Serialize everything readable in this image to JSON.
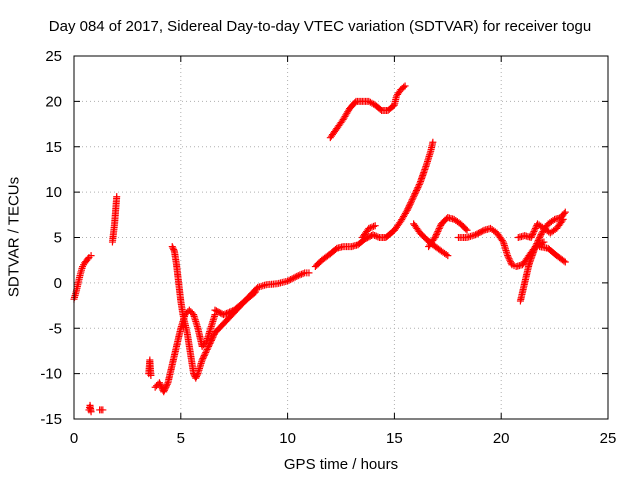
{
  "chart_data": {
    "type": "scatter",
    "title": "Day 084 of 2017, Sidereal Day-to-day VTEC variation (SDTVAR) for receiver togu",
    "xlabel": "GPS time / hours",
    "ylabel": "SDTVAR / TECUs",
    "xlim": [
      0,
      25
    ],
    "ylim": [
      -15,
      25
    ],
    "xticks": [
      0,
      5,
      10,
      15,
      20,
      25
    ],
    "yticks": [
      -15,
      -10,
      -5,
      0,
      5,
      10,
      15,
      20,
      25
    ],
    "grid": true,
    "marker": "plus",
    "color": "#ff0000",
    "segments": [
      [
        [
          0.0,
          -1.8
        ],
        [
          0.1,
          -1.0
        ],
        [
          0.2,
          0.0
        ],
        [
          0.3,
          1.0
        ],
        [
          0.4,
          1.8
        ],
        [
          0.5,
          2.2
        ],
        [
          0.6,
          2.5
        ],
        [
          0.7,
          2.8
        ],
        [
          0.8,
          3.0
        ]
      ],
      [
        [
          0.7,
          -14.0
        ],
        [
          0.75,
          -13.5
        ],
        [
          0.8,
          -14.2
        ]
      ],
      [
        [
          1.2,
          -14.0
        ],
        [
          1.35,
          -14.0
        ]
      ],
      [
        [
          1.8,
          4.5
        ],
        [
          1.85,
          5.5
        ],
        [
          1.9,
          6.5
        ],
        [
          1.95,
          8.0
        ],
        [
          2.0,
          9.5
        ]
      ],
      [
        [
          3.5,
          -10.0
        ],
        [
          3.55,
          -8.5
        ],
        [
          3.6,
          -10.2
        ]
      ],
      [
        [
          3.8,
          -11.5
        ],
        [
          4.0,
          -11.0
        ],
        [
          4.2,
          -12.0
        ],
        [
          4.4,
          -11.0
        ],
        [
          4.6,
          -9.0
        ],
        [
          4.8,
          -7.0
        ],
        [
          5.0,
          -5.0
        ],
        [
          5.2,
          -3.5
        ],
        [
          5.4,
          -3.0
        ],
        [
          5.6,
          -3.5
        ],
        [
          5.8,
          -5.0
        ],
        [
          6.0,
          -7.0
        ],
        [
          6.2,
          -6.5
        ],
        [
          6.4,
          -5.0
        ],
        [
          6.6,
          -3.5
        ]
      ],
      [
        [
          4.6,
          4.0
        ],
        [
          4.7,
          3.5
        ],
        [
          4.8,
          2.0
        ],
        [
          4.9,
          0.0
        ],
        [
          5.0,
          -2.0
        ],
        [
          5.1,
          -3.5
        ],
        [
          5.2,
          -4.5
        ],
        [
          5.3,
          -5.5
        ],
        [
          5.4,
          -7.0
        ],
        [
          5.5,
          -8.5
        ],
        [
          5.6,
          -10.0
        ],
        [
          5.7,
          -10.5
        ],
        [
          5.8,
          -10.0
        ],
        [
          6.0,
          -8.5
        ],
        [
          6.3,
          -7.0
        ],
        [
          6.6,
          -5.5
        ],
        [
          7.0,
          -4.5
        ],
        [
          7.4,
          -3.5
        ],
        [
          7.8,
          -2.5
        ],
        [
          8.2,
          -1.5
        ],
        [
          8.6,
          -0.5
        ],
        [
          9.0,
          -0.2
        ],
        [
          9.5,
          -0.1
        ],
        [
          10.0,
          0.2
        ],
        [
          10.5,
          0.8
        ],
        [
          10.8,
          1.1
        ],
        [
          11.0,
          1.1
        ]
      ],
      [
        [
          6.6,
          -3.0
        ],
        [
          7.0,
          -3.5
        ],
        [
          7.5,
          -3.0
        ],
        [
          8.0,
          -2.0
        ],
        [
          8.5,
          -1.0
        ]
      ],
      [
        [
          11.3,
          1.8
        ],
        [
          11.6,
          2.5
        ],
        [
          12.0,
          3.2
        ],
        [
          12.3,
          3.8
        ],
        [
          12.6,
          4.0
        ],
        [
          13.0,
          4.0
        ],
        [
          13.3,
          4.2
        ],
        [
          13.6,
          4.8
        ],
        [
          14.0,
          5.3
        ],
        [
          14.3,
          5.0
        ],
        [
          14.6,
          5.0
        ],
        [
          15.0,
          5.8
        ],
        [
          15.3,
          6.8
        ],
        [
          15.6,
          8.0
        ],
        [
          15.9,
          9.5
        ],
        [
          16.2,
          11.0
        ],
        [
          16.5,
          13.0
        ],
        [
          16.7,
          14.5
        ],
        [
          16.8,
          15.5
        ]
      ],
      [
        [
          13.5,
          5.0
        ],
        [
          13.8,
          6.0
        ],
        [
          14.1,
          6.3
        ]
      ],
      [
        [
          12.0,
          16.0
        ],
        [
          12.3,
          17.0
        ],
        [
          12.6,
          18.0
        ],
        [
          12.9,
          19.2
        ],
        [
          13.2,
          20.0
        ],
        [
          13.5,
          20.0
        ],
        [
          13.8,
          20.0
        ],
        [
          14.1,
          19.6
        ],
        [
          14.4,
          19.0
        ],
        [
          14.7,
          19.0
        ],
        [
          15.0,
          19.6
        ],
        [
          15.1,
          20.6
        ],
        [
          15.3,
          21.3
        ],
        [
          15.5,
          21.7
        ]
      ],
      [
        [
          15.9,
          6.5
        ],
        [
          16.2,
          5.5
        ],
        [
          16.5,
          4.8
        ],
        [
          16.8,
          4.2
        ],
        [
          17.2,
          3.5
        ],
        [
          17.5,
          3.0
        ]
      ],
      [
        [
          16.6,
          4.0
        ],
        [
          16.9,
          5.0
        ],
        [
          17.2,
          6.5
        ],
        [
          17.5,
          7.2
        ],
        [
          17.8,
          7.0
        ],
        [
          18.1,
          6.5
        ],
        [
          18.4,
          5.8
        ]
      ],
      [
        [
          18.0,
          5.0
        ],
        [
          18.4,
          5.0
        ],
        [
          18.8,
          5.3
        ],
        [
          19.2,
          5.8
        ],
        [
          19.5,
          6.0
        ],
        [
          19.8,
          5.5
        ],
        [
          20.1,
          4.5
        ],
        [
          20.3,
          3.0
        ],
        [
          20.5,
          2.0
        ],
        [
          20.7,
          1.8
        ],
        [
          21.0,
          2.0
        ],
        [
          21.3,
          3.0
        ],
        [
          21.6,
          4.0
        ],
        [
          22.0,
          4.5
        ]
      ],
      [
        [
          20.9,
          -2.0
        ],
        [
          21.1,
          0.0
        ],
        [
          21.3,
          2.0
        ],
        [
          21.6,
          4.0
        ],
        [
          21.9,
          5.5
        ],
        [
          22.2,
          6.5
        ],
        [
          22.5,
          7.0
        ],
        [
          22.8,
          7.2
        ],
        [
          23.0,
          7.8
        ]
      ],
      [
        [
          20.8,
          5.0
        ],
        [
          21.1,
          5.2
        ],
        [
          21.4,
          5.0
        ],
        [
          21.7,
          6.5
        ],
        [
          22.0,
          6.0
        ],
        [
          22.3,
          5.5
        ],
        [
          22.6,
          6.0
        ],
        [
          22.9,
          7.0
        ]
      ],
      [
        [
          21.8,
          4.0
        ],
        [
          22.2,
          3.8
        ],
        [
          22.6,
          3.0
        ],
        [
          23.0,
          2.3
        ]
      ]
    ]
  }
}
